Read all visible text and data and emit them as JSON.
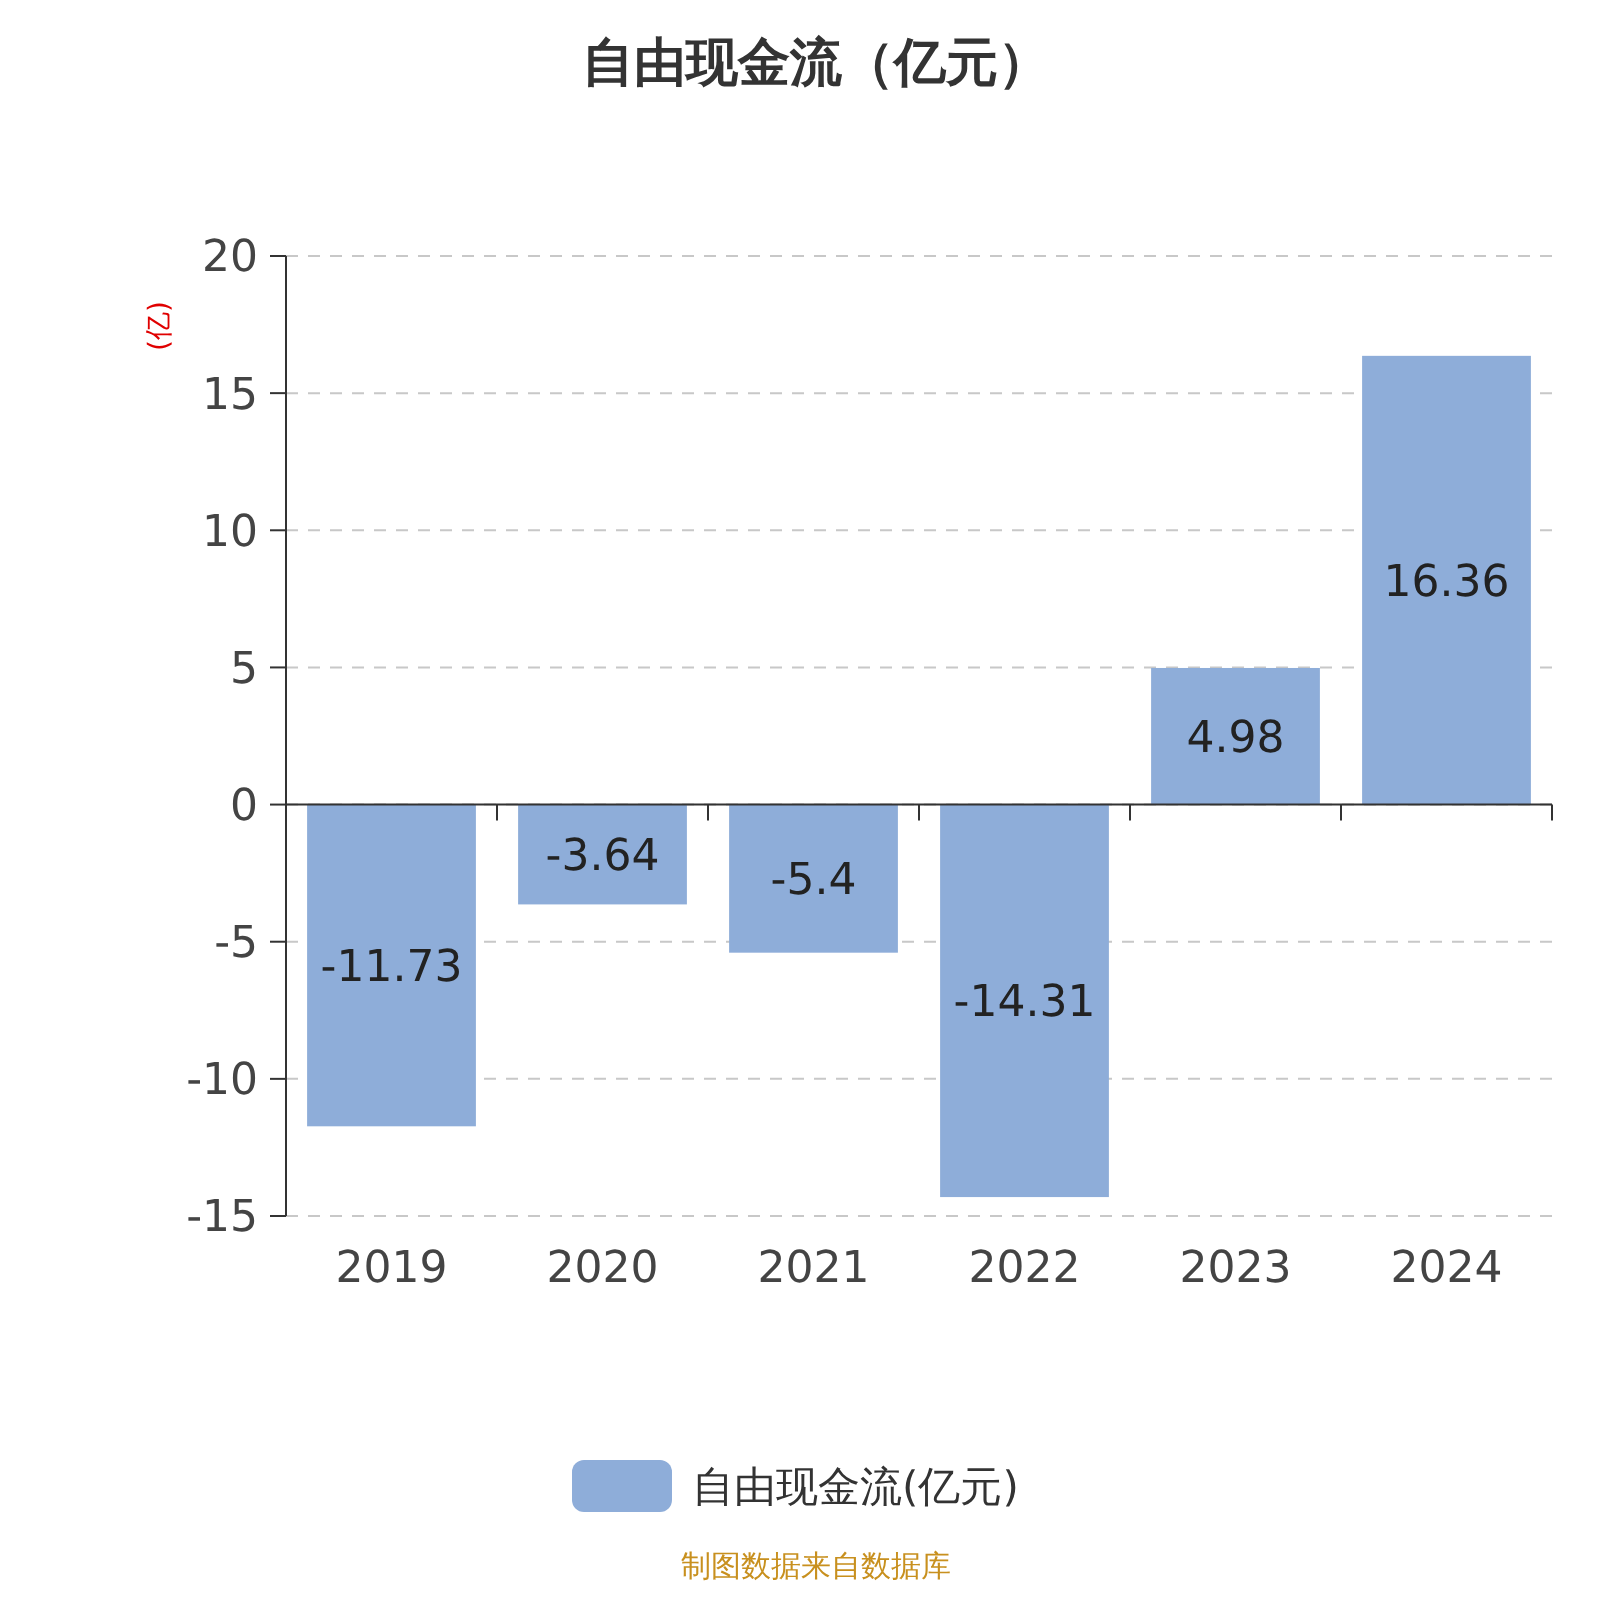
{
  "chart_data": {
    "type": "bar",
    "title": "自由现金流（亿元）",
    "ylabel": "(亿)",
    "categories": [
      "2019",
      "2020",
      "2021",
      "2022",
      "2023",
      "2024"
    ],
    "series": [
      {
        "name": "自由现金流(亿元)",
        "color": "#8eadd9",
        "values": [
          -11.73,
          -3.64,
          -5.4,
          -14.31,
          4.98,
          16.36
        ]
      }
    ],
    "ylim": [
      -15,
      20
    ],
    "yticks": [
      -15,
      -10,
      -5,
      0,
      5,
      10,
      15,
      20
    ],
    "grid": "y",
    "legend": "bottom",
    "data_labels": true,
    "annotations": [
      "制图数据来自数据库"
    ]
  }
}
